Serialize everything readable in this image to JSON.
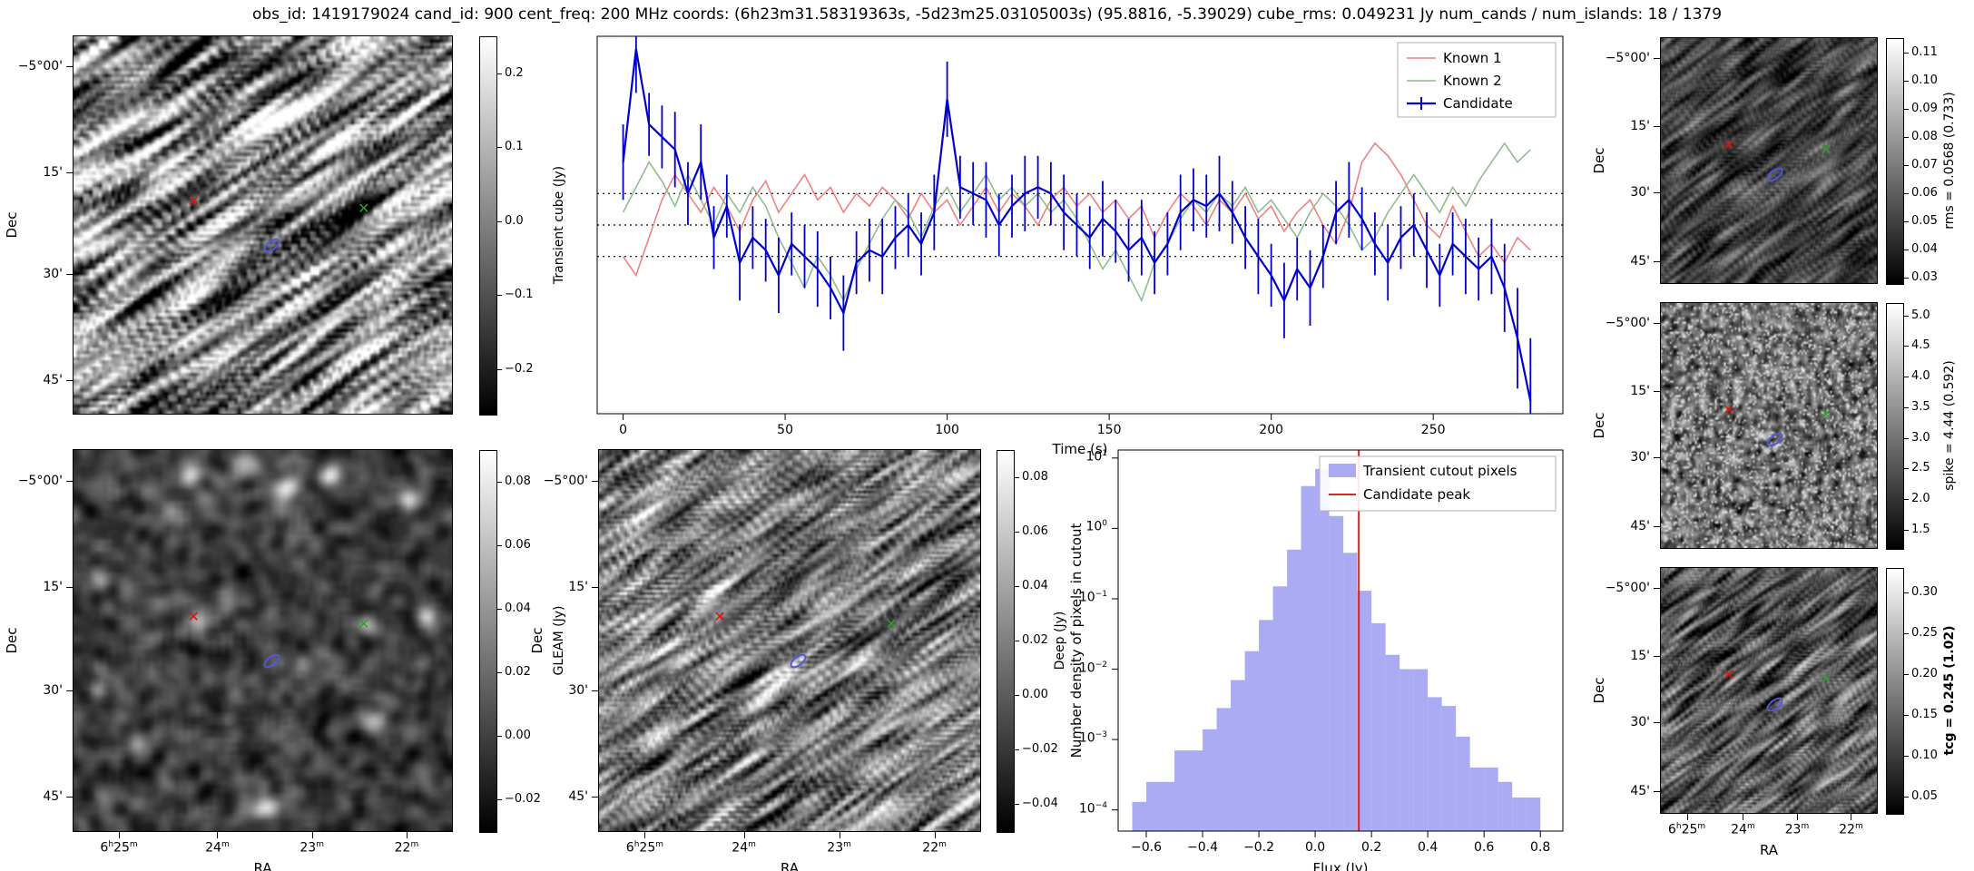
{
  "title": "obs_id: 1419179024 cand_id: 900 cent_freq: 200 MHz coords: (6h23m31.58319363s, -5d23m25.03105003s) (95.8816, -5.39029) cube_rms: 0.049231 Jy num_cands / num_islands: 18 / 1379",
  "axes": {
    "dec_label": "Dec",
    "ra_label": "RA",
    "dec_ticks": [
      "-5°00'",
      "15'",
      "30'",
      "45'"
    ],
    "ra_ticks": [
      "6h25m",
      "24m",
      "23m",
      "22m"
    ]
  },
  "markers": {
    "known1_color": "#dd1111",
    "known2_color": "#2ca02c",
    "candidate_color": "#5555dd",
    "red_x": {
      "fx": 0.32,
      "fy": 0.44
    },
    "green_x": {
      "fx": 0.77,
      "fy": 0.46
    },
    "blue_ellipse": {
      "fx": 0.52,
      "fy": 0.55
    }
  },
  "chart_data": {
    "lightcurve": {
      "type": "line",
      "xlabel": "Time (s)",
      "xticks": [
        0,
        50,
        100,
        150,
        200,
        250
      ],
      "xlim": [
        -8,
        290
      ],
      "ylim": [
        -0.3,
        0.3
      ],
      "hlines": [
        0.05,
        0.0,
        -0.05
      ],
      "x_start": 0,
      "x_step": 4,
      "legend_position": "top-right",
      "series": [
        {
          "name": "Known 1",
          "color": "#f08080",
          "values": [
            -0.05,
            -0.08,
            -0.02,
            0.04,
            0.08,
            0.05,
            0.02,
            0.06,
            0.03,
            -0.01,
            0.04,
            0.07,
            0.02,
            0.05,
            0.08,
            0.04,
            0.06,
            0.02,
            0.05,
            0.03,
            0.06,
            0.04,
            0.01,
            0.05,
            0.02,
            0.04,
            0.0,
            0.03,
            0.06,
            0.02,
            0.05,
            0.03,
            0.0,
            0.04,
            0.06,
            0.03,
            0.05,
            0.02,
            0.04,
            0.01,
            0.03,
            -0.02,
            0.02,
            0.05,
            0.03,
            0.0,
            0.04,
            0.02,
            0.05,
            0.01,
            0.03,
            -0.01,
            0.02,
            0.04,
            0.0,
            -0.03,
            0.02,
            0.1,
            0.13,
            0.11,
            0.08,
            0.04,
            0.0,
            -0.02,
            0.03,
            -0.01,
            -0.05,
            -0.03,
            -0.06,
            -0.02,
            -0.04
          ]
        },
        {
          "name": "Known 2",
          "color": "#8fbc8f",
          "values": [
            0.02,
            0.06,
            0.1,
            0.07,
            0.03,
            0.08,
            0.04,
            0.0,
            0.05,
            0.02,
            0.06,
            0.03,
            -0.02,
            -0.06,
            -0.1,
            -0.05,
            -0.08,
            -0.12,
            -0.07,
            -0.03,
            0.01,
            0.04,
            0.02,
            -0.02,
            0.03,
            0.06,
            0.02,
            0.05,
            0.08,
            0.04,
            0.06,
            0.03,
            0.05,
            0.02,
            0.04,
            0.01,
            -0.03,
            -0.07,
            -0.04,
            -0.08,
            -0.12,
            -0.06,
            -0.03,
            0.01,
            0.04,
            0.02,
            0.05,
            0.03,
            0.06,
            0.02,
            0.04,
            0.01,
            -0.02,
            0.02,
            0.05,
            0.03,
            0.0,
            -0.04,
            -0.02,
            0.02,
            0.05,
            0.08,
            0.05,
            0.02,
            0.06,
            0.03,
            0.07,
            0.1,
            0.13,
            0.1,
            0.12
          ]
        },
        {
          "name": "Candidate",
          "color": "#0000cd",
          "values": [
            0.1,
            0.28,
            0.16,
            0.14,
            0.12,
            0.05,
            0.1,
            -0.02,
            0.03,
            -0.06,
            -0.02,
            -0.04,
            -0.08,
            -0.03,
            -0.05,
            -0.07,
            -0.1,
            -0.14,
            -0.06,
            -0.04,
            -0.05,
            -0.02,
            0.0,
            -0.03,
            0.02,
            0.2,
            0.06,
            0.05,
            0.04,
            0.0,
            0.03,
            0.05,
            0.06,
            0.05,
            0.02,
            0.0,
            -0.02,
            0.01,
            -0.01,
            -0.04,
            -0.02,
            -0.06,
            -0.03,
            0.02,
            0.04,
            0.03,
            0.05,
            0.02,
            -0.02,
            -0.05,
            -0.08,
            -0.12,
            -0.07,
            -0.1,
            -0.05,
            0.02,
            0.04,
            0.01,
            -0.03,
            -0.06,
            -0.02,
            0.0,
            -0.04,
            -0.08,
            -0.03,
            -0.05,
            -0.07,
            -0.05,
            -0.1,
            -0.18,
            -0.28
          ],
          "yerr": [
            0.06,
            0.07,
            0.05,
            0.05,
            0.06,
            0.05,
            0.06,
            0.05,
            0.05,
            0.06,
            0.05,
            0.05,
            0.06,
            0.05,
            0.05,
            0.06,
            0.05,
            0.06,
            0.05,
            0.05,
            0.06,
            0.05,
            0.05,
            0.05,
            0.06,
            0.06,
            0.05,
            0.05,
            0.06,
            0.05,
            0.05,
            0.06,
            0.05,
            0.05,
            0.06,
            0.05,
            0.05,
            0.06,
            0.05,
            0.05,
            0.06,
            0.05,
            0.05,
            0.06,
            0.05,
            0.05,
            0.06,
            0.05,
            0.05,
            0.06,
            0.05,
            0.06,
            0.05,
            0.06,
            0.05,
            0.05,
            0.06,
            0.05,
            0.05,
            0.06,
            0.05,
            0.05,
            0.06,
            0.05,
            0.05,
            0.06,
            0.05,
            0.06,
            0.07,
            0.08,
            0.1
          ]
        }
      ]
    },
    "histogram": {
      "type": "bar",
      "xlabel": "Flux (Jy)",
      "ylabel": "Number density of pixels in cutout",
      "bin_width": 0.05,
      "bin_centers": [
        -0.625,
        -0.575,
        -0.525,
        -0.475,
        -0.425,
        -0.375,
        -0.325,
        -0.275,
        -0.225,
        -0.175,
        -0.125,
        -0.075,
        -0.025,
        0.025,
        0.075,
        0.125,
        0.175,
        0.225,
        0.275,
        0.325,
        0.375,
        0.425,
        0.475,
        0.525,
        0.575,
        0.625,
        0.675,
        0.725,
        0.775
      ],
      "densities": [
        0.00013,
        0.00025,
        0.00025,
        0.0007,
        0.0007,
        0.0014,
        0.0028,
        0.007,
        0.018,
        0.05,
        0.15,
        0.5,
        4.0,
        7.0,
        1.5,
        0.45,
        0.13,
        0.045,
        0.016,
        0.01,
        0.01,
        0.004,
        0.003,
        0.0011,
        0.0004,
        0.0004,
        0.00025,
        0.00015,
        0.00015
      ],
      "candidate_peak": 0.155,
      "bar_color": "#7878ee",
      "line_color": "#dd2222",
      "xticks": [
        -0.6,
        -0.4,
        -0.2,
        0.0,
        0.2,
        0.4,
        0.6,
        0.8
      ],
      "ytick_exponents": [
        1,
        0,
        -1,
        -2,
        -3,
        -4
      ],
      "xlim": [
        -0.7,
        0.88
      ],
      "ylim": [
        5e-05,
        13
      ],
      "legend": [
        "Transient cutout pixels",
        "Candidate peak"
      ]
    },
    "cutouts": [
      {
        "id": "transient",
        "name": "Transient cube cutout",
        "colorbar_label": "Transient cube (Jy)",
        "tick_values": [
          0.2,
          0.1,
          0.0,
          -0.1,
          -0.2
        ],
        "tick_labels": [
          "0.2",
          "0.1",
          "0.0",
          "-0.1",
          "-0.2"
        ],
        "cmin": -0.26,
        "cmax": 0.25,
        "seed": 11,
        "bold": false
      },
      {
        "id": "gleam",
        "name": "GLEAM cutout",
        "colorbar_label": "GLEAM (Jy)",
        "tick_values": [
          0.08,
          0.06,
          0.04,
          0.02,
          0.0,
          -0.02
        ],
        "tick_labels": [
          "0.08",
          "0.06",
          "0.04",
          "0.02",
          "0.00",
          "-0.02"
        ],
        "cmin": -0.03,
        "cmax": 0.09,
        "seed": 22,
        "bold": false
      },
      {
        "id": "deep",
        "name": "Deep image cutout",
        "colorbar_label": "Deep (Jy)",
        "tick_values": [
          0.08,
          0.06,
          0.04,
          0.02,
          0.0,
          -0.02,
          -0.04
        ],
        "tick_labels": [
          "0.08",
          "0.06",
          "0.04",
          "0.02",
          "0.00",
          "-0.02",
          "-0.04"
        ],
        "cmin": -0.05,
        "cmax": 0.09,
        "seed": 33,
        "bold": false
      },
      {
        "id": "rms",
        "name": "rms map cutout",
        "colorbar_label": "rms = 0.0568 (0.733)",
        "tick_values": [
          0.11,
          0.1,
          0.09,
          0.08,
          0.07,
          0.06,
          0.05,
          0.04,
          0.03
        ],
        "tick_labels": [
          "0.11",
          "0.10",
          "0.09",
          "0.08",
          "0.07",
          "0.06",
          "0.05",
          "0.04",
          "0.03"
        ],
        "cmin": 0.028,
        "cmax": 0.115,
        "seed": 44,
        "bold": false
      },
      {
        "id": "spike",
        "name": "spike map cutout",
        "colorbar_label": "spike = 4.44 (0.592)",
        "tick_values": [
          5.0,
          4.5,
          4.0,
          3.5,
          3.0,
          2.5,
          2.0,
          1.5
        ],
        "tick_labels": [
          "5.0",
          "4.5",
          "4.0",
          "3.5",
          "3.0",
          "2.5",
          "2.0",
          "1.5"
        ],
        "cmin": 1.2,
        "cmax": 5.2,
        "seed": 55,
        "bold": false
      },
      {
        "id": "tcg",
        "name": "tcg map cutout",
        "colorbar_label": "tcg = 0.245 (1.02)",
        "tick_values": [
          0.3,
          0.25,
          0.2,
          0.15,
          0.1,
          0.05
        ],
        "tick_labels": [
          "0.30",
          "0.25",
          "0.20",
          "0.15",
          "0.10",
          "0.05"
        ],
        "cmin": 0.03,
        "cmax": 0.33,
        "seed": 66,
        "bold": true
      }
    ]
  }
}
